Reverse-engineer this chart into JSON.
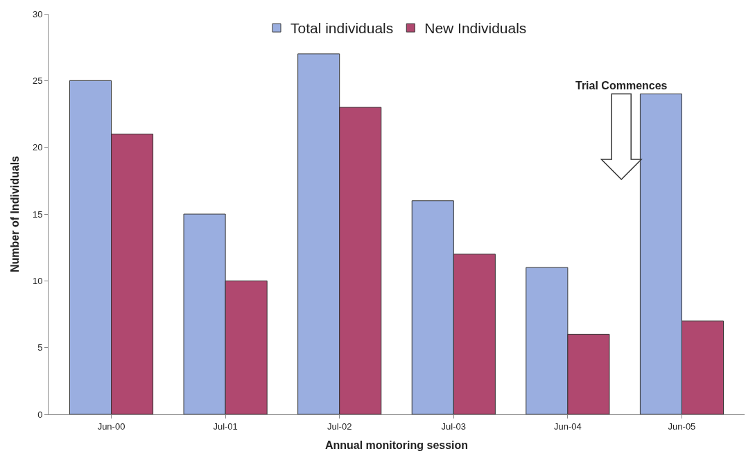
{
  "chart_data": {
    "type": "bar",
    "xlabel": "Annual monitoring session",
    "ylabel": "Number of Individuals",
    "categories": [
      "Jun-00",
      "Jul-01",
      "Jul-02",
      "Jul-03",
      "Jun-04",
      "Jun-05"
    ],
    "series": [
      {
        "name": "Total individuals",
        "color": "#9aaee0",
        "values": [
          25,
          15,
          27,
          16,
          11,
          24
        ]
      },
      {
        "name": "New Individuals",
        "color": "#b0486f",
        "values": [
          21,
          10,
          23,
          12,
          6,
          7
        ]
      }
    ],
    "ylim": [
      0,
      30
    ],
    "yticks": [
      0,
      5,
      10,
      15,
      20,
      25,
      30
    ],
    "legend": "top",
    "annotations": [
      "Trial Commences"
    ]
  }
}
